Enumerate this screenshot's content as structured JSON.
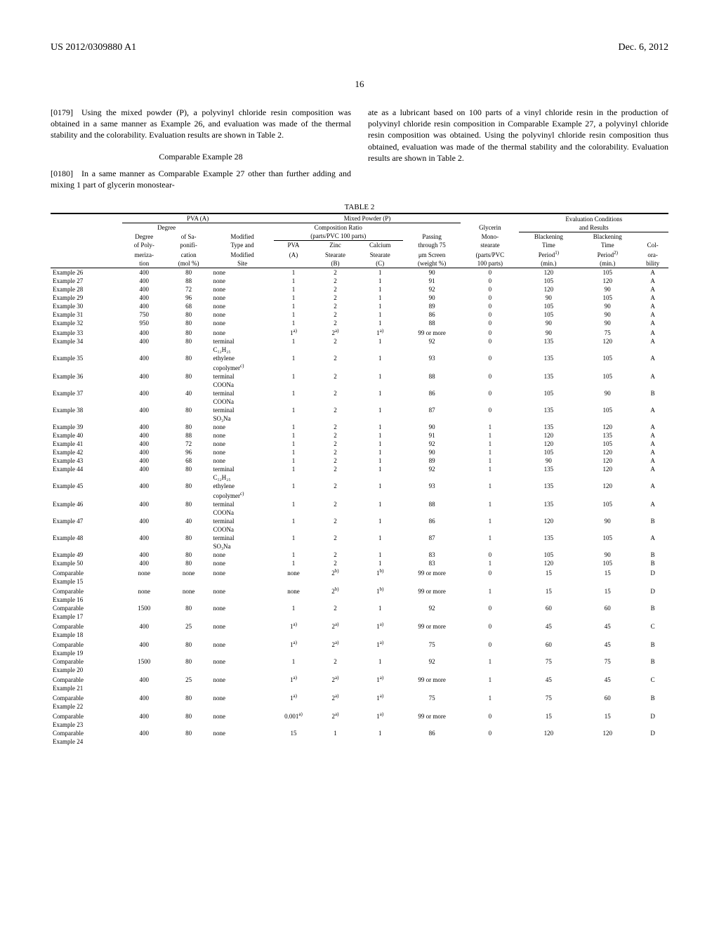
{
  "header": {
    "publication": "US 2012/0309880 A1",
    "date": "Dec. 6, 2012",
    "page": "16"
  },
  "paras": {
    "p0179": "[0179] Using the mixed powder (P), a polyvinyl chloride resin composition was obtained in a same manner as Example 26, and evaluation was made of the thermal stability and the colorability. Evaluation results are shown in Table 2.",
    "ex28title": "Comparable Example 28",
    "p0180": "[0180] In a same manner as Comparable Example 27 other than further adding and mixing 1 part of glycerin monostear-",
    "p_right": "ate as a lubricant based on 100 parts of a vinyl chloride resin in the production of polyvinyl chloride resin composition in Comparable Example 27, a polyvinyl chloride resin composition was obtained. Using the polyvinyl chloride resin composition thus obtained, evaluation was made of the thermal stability and the colorability. Evaluation results are shown in Table 2."
  },
  "table": {
    "title": "TABLE 2",
    "section_hdrs": {
      "pva": "PVA (A)",
      "mix": "Mixed Powder (P)",
      "eval": "Evaluation Conditions"
    },
    "sub_hdrs": {
      "degree": "Degree",
      "compratio": "Composition Ratio",
      "glycerin": "Glycerin",
      "results": "and Results"
    },
    "sub2_hdrs": {
      "parts": "(parts/PVC 100 parts)",
      "modified": "Modified",
      "passing": "Passing",
      "mono": "Mono-",
      "black": "Blackening"
    },
    "colhdr": {
      "c0_1": "Degree",
      "c0_2": "of Poly-",
      "c0_3": "meriza-",
      "c0_4": "tion",
      "c1_1": "of Sa-",
      "c1_2": "ponifi-",
      "c1_3": "cation",
      "c1_4": "(mol %)",
      "c2_1": "Type and",
      "c2_2": "Modified",
      "c2_3": "Site",
      "c3_1": "PVA",
      "c3_2": "(A)",
      "c4_1": "Zinc",
      "c4_2": "Stearate",
      "c4_3": "(B)",
      "c5_1": "Calcium",
      "c5_2": "Stearate",
      "c5_3": "(C)",
      "c6_1": "through 75",
      "c6_2": "μm Screen",
      "c6_3": "(weight %)",
      "c7_1": "stearate",
      "c7_2": "(parts/PVC",
      "c7_3": "100 parts)",
      "c8_1": "Time",
      "c8_2": "Period",
      "c8_2s": "1)",
      "c8_3": "(min.)",
      "c9_1": "Time",
      "c9_2": "Period",
      "c9_2s": "2)",
      "c9_3": "(min.)",
      "c10_1": "Col-",
      "c10_2": "ora-",
      "c10_3": "bility"
    },
    "rows": [
      {
        "label": "Example 26",
        "dp": "400",
        "sa": "80",
        "mod": "none",
        "pva": "1",
        "zn": "2",
        "ca": "1",
        "pass": "90",
        "gly": "0",
        "t1": "120",
        "t2": "105",
        "col": "A"
      },
      {
        "label": "Example 27",
        "dp": "400",
        "sa": "88",
        "mod": "none",
        "pva": "1",
        "zn": "2",
        "ca": "1",
        "pass": "91",
        "gly": "0",
        "t1": "105",
        "t2": "120",
        "col": "A"
      },
      {
        "label": "Example 28",
        "dp": "400",
        "sa": "72",
        "mod": "none",
        "pva": "1",
        "zn": "2",
        "ca": "1",
        "pass": "92",
        "gly": "0",
        "t1": "120",
        "t2": "90",
        "col": "A"
      },
      {
        "label": "Example 29",
        "dp": "400",
        "sa": "96",
        "mod": "none",
        "pva": "1",
        "zn": "2",
        "ca": "1",
        "pass": "90",
        "gly": "0",
        "t1": "90",
        "t2": "105",
        "col": "A"
      },
      {
        "label": "Example 30",
        "dp": "400",
        "sa": "68",
        "mod": "none",
        "pva": "1",
        "zn": "2",
        "ca": "1",
        "pass": "89",
        "gly": "0",
        "t1": "105",
        "t2": "90",
        "col": "A"
      },
      {
        "label": "Example 31",
        "dp": "750",
        "sa": "80",
        "mod": "none",
        "pva": "1",
        "zn": "2",
        "ca": "1",
        "pass": "86",
        "gly": "0",
        "t1": "105",
        "t2": "90",
        "col": "A"
      },
      {
        "label": "Example 32",
        "dp": "950",
        "sa": "80",
        "mod": "none",
        "pva": "1",
        "zn": "2",
        "ca": "1",
        "pass": "88",
        "gly": "0",
        "t1": "90",
        "t2": "90",
        "col": "A"
      },
      {
        "label": "Example 33",
        "dp": "400",
        "sa": "80",
        "mod": "none",
        "pva": "1",
        "pvas": "a)",
        "zn": "2",
        "zns": "a)",
        "ca": "1",
        "cas": "a)",
        "pass": "99 or more",
        "gly": "0",
        "t1": "90",
        "t2": "75",
        "col": "A"
      },
      {
        "label": "Example 34",
        "dp": "400",
        "sa": "80",
        "mod": "terminal C₁₂H₂₅",
        "pva": "1",
        "zn": "2",
        "ca": "1",
        "pass": "92",
        "gly": "0",
        "t1": "135",
        "t2": "120",
        "col": "A"
      },
      {
        "label": "Example 35",
        "dp": "400",
        "sa": "80",
        "mod": "ethylene copolymer",
        "mods": "c)",
        "pva": "1",
        "zn": "2",
        "ca": "1",
        "pass": "93",
        "gly": "0",
        "t1": "135",
        "t2": "105",
        "col": "A"
      },
      {
        "label": "Example 36",
        "dp": "400",
        "sa": "80",
        "mod": "terminal COONa",
        "pva": "1",
        "zn": "2",
        "ca": "1",
        "pass": "88",
        "gly": "0",
        "t1": "135",
        "t2": "105",
        "col": "A"
      },
      {
        "label": "Example 37",
        "dp": "400",
        "sa": "40",
        "mod": "terminal COONa",
        "pva": "1",
        "zn": "2",
        "ca": "1",
        "pass": "86",
        "gly": "0",
        "t1": "105",
        "t2": "90",
        "col": "B"
      },
      {
        "label": "Example 38",
        "dp": "400",
        "sa": "80",
        "mod": "terminal SO₃Na",
        "pva": "1",
        "zn": "2",
        "ca": "1",
        "pass": "87",
        "gly": "0",
        "t1": "135",
        "t2": "105",
        "col": "A"
      },
      {
        "label": "Example 39",
        "dp": "400",
        "sa": "80",
        "mod": "none",
        "pva": "1",
        "zn": "2",
        "ca": "1",
        "pass": "90",
        "gly": "1",
        "t1": "135",
        "t2": "120",
        "col": "A"
      },
      {
        "label": "Example 40",
        "dp": "400",
        "sa": "88",
        "mod": "none",
        "pva": "1",
        "zn": "2",
        "ca": "1",
        "pass": "91",
        "gly": "1",
        "t1": "120",
        "t2": "135",
        "col": "A"
      },
      {
        "label": "Example 41",
        "dp": "400",
        "sa": "72",
        "mod": "none",
        "pva": "1",
        "zn": "2",
        "ca": "1",
        "pass": "92",
        "gly": "1",
        "t1": "120",
        "t2": "105",
        "col": "A"
      },
      {
        "label": "Example 42",
        "dp": "400",
        "sa": "96",
        "mod": "none",
        "pva": "1",
        "zn": "2",
        "ca": "1",
        "pass": "90",
        "gly": "1",
        "t1": "105",
        "t2": "120",
        "col": "A"
      },
      {
        "label": "Example 43",
        "dp": "400",
        "sa": "68",
        "mod": "none",
        "pva": "1",
        "zn": "2",
        "ca": "1",
        "pass": "89",
        "gly": "1",
        "t1": "90",
        "t2": "120",
        "col": "A"
      },
      {
        "label": "Example 44",
        "dp": "400",
        "sa": "80",
        "mod": "terminal C₁₂H₂₅",
        "pva": "1",
        "zn": "2",
        "ca": "1",
        "pass": "92",
        "gly": "1",
        "t1": "135",
        "t2": "120",
        "col": "A"
      },
      {
        "label": "Example 45",
        "dp": "400",
        "sa": "80",
        "mod": "ethylene copolymer",
        "mods": "c)",
        "pva": "1",
        "zn": "2",
        "ca": "1",
        "pass": "93",
        "gly": "1",
        "t1": "135",
        "t2": "120",
        "col": "A"
      },
      {
        "label": "Example 46",
        "dp": "400",
        "sa": "80",
        "mod": "terminal COONa",
        "pva": "1",
        "zn": "2",
        "ca": "1",
        "pass": "88",
        "gly": "1",
        "t1": "135",
        "t2": "105",
        "col": "A"
      },
      {
        "label": "Example 47",
        "dp": "400",
        "sa": "40",
        "mod": "terminal COONa",
        "pva": "1",
        "zn": "2",
        "ca": "1",
        "pass": "86",
        "gly": "1",
        "t1": "120",
        "t2": "90",
        "col": "B"
      },
      {
        "label": "Example 48",
        "dp": "400",
        "sa": "80",
        "mod": "terminal SO₃Na",
        "pva": "1",
        "zn": "2",
        "ca": "1",
        "pass": "87",
        "gly": "1",
        "t1": "135",
        "t2": "105",
        "col": "A"
      },
      {
        "label": "Example 49",
        "dp": "400",
        "sa": "80",
        "mod": "none",
        "pva": "1",
        "zn": "2",
        "ca": "1",
        "pass": "83",
        "gly": "0",
        "t1": "105",
        "t2": "90",
        "col": "B"
      },
      {
        "label": "Example 50",
        "dp": "400",
        "sa": "80",
        "mod": "none",
        "pva": "1",
        "zn": "2",
        "ca": "1",
        "pass": "83",
        "gly": "1",
        "t1": "120",
        "t2": "105",
        "col": "B"
      },
      {
        "label": "Comparable Example 15",
        "dp": "none",
        "sa": "none",
        "mod": "none",
        "pva": "none",
        "zn": "2",
        "zns": "b)",
        "ca": "1",
        "cas": "b)",
        "pass": "99 or more",
        "gly": "0",
        "t1": "15",
        "t2": "15",
        "col": "D"
      },
      {
        "label": "Comparable Example 16",
        "dp": "none",
        "sa": "none",
        "mod": "none",
        "pva": "none",
        "zn": "2",
        "zns": "b)",
        "ca": "1",
        "cas": "b)",
        "pass": "99 or more",
        "gly": "1",
        "t1": "15",
        "t2": "15",
        "col": "D"
      },
      {
        "label": "Comparable Example 17",
        "dp": "1500",
        "sa": "80",
        "mod": "none",
        "pva": "1",
        "zn": "2",
        "ca": "1",
        "pass": "92",
        "gly": "0",
        "t1": "60",
        "t2": "60",
        "col": "B"
      },
      {
        "label": "Comparable Example 18",
        "dp": "400",
        "sa": "25",
        "mod": "none",
        "pva": "1",
        "pvas": "a)",
        "zn": "2",
        "zns": "a)",
        "ca": "1",
        "cas": "a)",
        "pass": "99 or more",
        "gly": "0",
        "t1": "45",
        "t2": "45",
        "col": "C"
      },
      {
        "label": "Comparable Example 19",
        "dp": "400",
        "sa": "80",
        "mod": "none",
        "pva": "1",
        "pvas": "a)",
        "zn": "2",
        "zns": "a)",
        "ca": "1",
        "cas": "a)",
        "pass": "75",
        "gly": "0",
        "t1": "60",
        "t2": "45",
        "col": "B"
      },
      {
        "label": "Comparable Example 20",
        "dp": "1500",
        "sa": "80",
        "mod": "none",
        "pva": "1",
        "zn": "2",
        "ca": "1",
        "pass": "92",
        "gly": "1",
        "t1": "75",
        "t2": "75",
        "col": "B"
      },
      {
        "label": "Comparable Example 21",
        "dp": "400",
        "sa": "25",
        "mod": "none",
        "pva": "1",
        "pvas": "a)",
        "zn": "2",
        "zns": "a)",
        "ca": "1",
        "cas": "a)",
        "pass": "99 or more",
        "gly": "1",
        "t1": "45",
        "t2": "45",
        "col": "C"
      },
      {
        "label": "Comparable Example 22",
        "dp": "400",
        "sa": "80",
        "mod": "none",
        "pva": "1",
        "pvas": "a)",
        "zn": "2",
        "zns": "a)",
        "ca": "1",
        "cas": "a)",
        "pass": "75",
        "gly": "1",
        "t1": "75",
        "t2": "60",
        "col": "B"
      },
      {
        "label": "Comparable Example 23",
        "dp": "400",
        "sa": "80",
        "mod": "none",
        "pva": "0.001",
        "pvas": "a)",
        "zn": "2",
        "zns": "a)",
        "ca": "1",
        "cas": "a)",
        "pass": "99 or more",
        "gly": "0",
        "t1": "15",
        "t2": "15",
        "col": "D"
      },
      {
        "label": "Comparable Example 24",
        "dp": "400",
        "sa": "80",
        "mod": "none",
        "pva": "15",
        "zn": "1",
        "ca": "1",
        "pass": "86",
        "gly": "0",
        "t1": "120",
        "t2": "120",
        "col": "D"
      }
    ]
  }
}
